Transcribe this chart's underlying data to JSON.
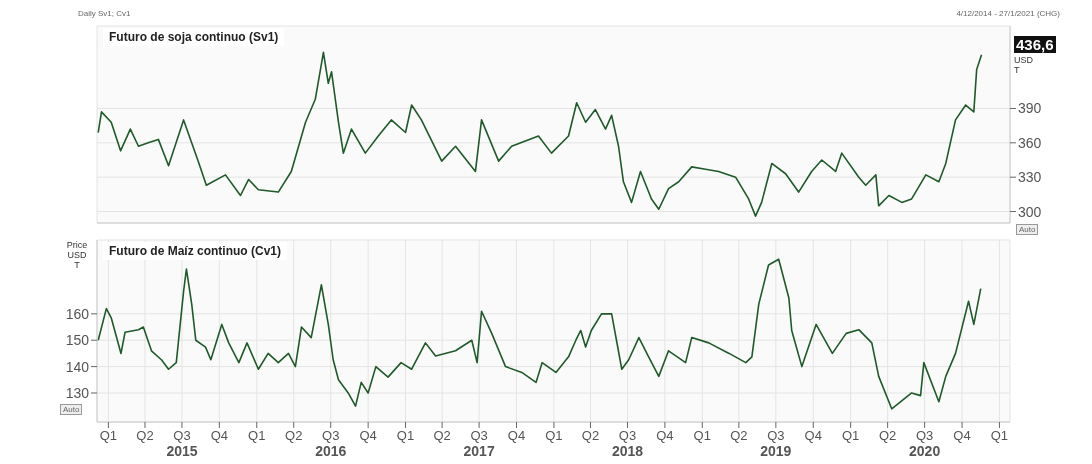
{
  "chart_data": [
    {
      "type": "line",
      "title": "Futuro de soja continuo (Sv1)",
      "ylabel": "USD T",
      "annotations": [
        "Daily Sv1; Cv1",
        "4/12/2014 - 27/1/2021 (CHG)",
        "Auto",
        "436,6"
      ],
      "xlim": [
        "2014-12-04",
        "2021-01-27"
      ],
      "ylim": [
        290,
        462
      ],
      "yticks": [
        300,
        330,
        360,
        390
      ],
      "xticks": [
        {
          "value": "2015-01-01",
          "label": null
        },
        {
          "value": "2015-04-01",
          "label": null
        },
        {
          "value": "2015-07-01",
          "label": null
        },
        {
          "value": "2015-10-01",
          "label": null
        },
        {
          "value": "2016-01-01",
          "label": null
        },
        {
          "value": "2016-04-01",
          "label": null
        },
        {
          "value": "2016-07-01",
          "label": null
        },
        {
          "value": "2016-10-01",
          "label": null
        },
        {
          "value": "2017-01-01",
          "label": null
        },
        {
          "value": "2017-04-01",
          "label": null
        },
        {
          "value": "2017-07-01",
          "label": null
        },
        {
          "value": "2017-10-01",
          "label": null
        },
        {
          "value": "2018-01-01",
          "label": null
        },
        {
          "value": "2018-04-01",
          "label": null
        },
        {
          "value": "2018-07-01",
          "label": null
        },
        {
          "value": "2018-10-01",
          "label": null
        },
        {
          "value": "2019-01-01",
          "label": null
        },
        {
          "value": "2019-04-01",
          "label": null
        },
        {
          "value": "2019-07-01",
          "label": null
        },
        {
          "value": "2019-10-01",
          "label": null
        },
        {
          "value": "2020-01-01",
          "label": null
        },
        {
          "value": "2020-04-01",
          "label": null
        },
        {
          "value": "2020-07-01",
          "label": null
        },
        {
          "value": "2020-10-01",
          "label": null
        },
        {
          "value": "2021-01-01",
          "label": null
        }
      ],
      "tick_labels": "y",
      "grid": true,
      "legend": false,
      "marker": "none",
      "line_style": "solid",
      "x": [
        "2014-12-07",
        "2014-12-15",
        "2015-01-08",
        "2015-01-31",
        "2015-02-24",
        "2015-03-16",
        "2015-04-09",
        "2015-05-04",
        "2015-05-29",
        "2015-07-05",
        "2015-08-10",
        "2015-08-30",
        "2015-10-16",
        "2015-11-22",
        "2015-12-12",
        "2016-01-05",
        "2016-02-23",
        "2016-03-26",
        "2016-04-30",
        "2016-05-24",
        "2016-06-13",
        "2016-06-25",
        "2016-07-03",
        "2016-07-20",
        "2016-08-01",
        "2016-08-21",
        "2016-09-24",
        "2016-10-26",
        "2016-11-27",
        "2017-01-01",
        "2017-01-16",
        "2017-02-09",
        "2017-03-31",
        "2017-05-04",
        "2017-06-22",
        "2017-07-07",
        "2017-08-18",
        "2017-09-19",
        "2017-11-24",
        "2017-12-26",
        "2018-02-06",
        "2018-02-26",
        "2018-03-20",
        "2018-04-13",
        "2018-05-08",
        "2018-05-23",
        "2018-06-09",
        "2018-06-21",
        "2018-07-11",
        "2018-08-02",
        "2018-08-29",
        "2018-09-16",
        "2018-10-10",
        "2018-11-04",
        "2018-12-06",
        "2019-01-09",
        "2019-02-10",
        "2019-03-24",
        "2019-04-25",
        "2019-05-12",
        "2019-05-27",
        "2019-06-21",
        "2019-07-25",
        "2019-08-26",
        "2019-09-27",
        "2019-10-22",
        "2019-11-25",
        "2019-12-10",
        "2020-01-21",
        "2020-02-07",
        "2020-03-03",
        "2020-03-10",
        "2020-04-04",
        "2020-05-06",
        "2020-05-30",
        "2020-07-04",
        "2020-08-05",
        "2020-08-22",
        "2020-09-15",
        "2020-10-10",
        "2020-10-30",
        "2020-11-06",
        "2020-11-18"
      ],
      "series": [
        {
          "color": "#1f5a2a",
          "values": [
            369,
            387,
            378,
            353,
            372,
            357,
            360,
            363,
            340,
            380,
            344,
            323,
            332,
            314,
            328,
            319,
            317,
            335,
            378,
            398,
            439,
            412,
            422,
            378,
            351,
            372,
            351,
            366,
            380,
            369,
            393,
            380,
            344,
            357,
            335,
            380,
            344,
            357,
            366,
            351,
            366,
            395,
            378,
            389,
            372,
            384,
            357,
            326,
            308,
            335,
            311,
            302,
            320,
            326,
            339,
            337,
            335,
            330,
            311,
            296,
            308,
            342,
            333,
            317,
            335,
            345,
            335,
            351,
            330,
            323,
            332,
            305,
            314,
            308,
            311,
            332,
            326,
            342,
            380,
            393,
            387,
            424,
            437
          ]
        }
      ]
    },
    {
      "type": "line",
      "title": "Futuro de Maíz continuo (Cv1)",
      "ylabel": "Price USD T",
      "annotations": [
        "Auto"
      ],
      "xlim": [
        "2014-12-04",
        "2021-01-27"
      ],
      "ylim": [
        119,
        188
      ],
      "yticks": [
        130,
        140,
        150,
        160
      ],
      "xticks": [
        {
          "value": "2015-01-01",
          "label": "Q1"
        },
        {
          "value": "2015-04-01",
          "label": "Q2"
        },
        {
          "value": "2015-07-01",
          "label": "Q3\n2015"
        },
        {
          "value": "2015-10-01",
          "label": "Q4"
        },
        {
          "value": "2016-01-01",
          "label": "Q1"
        },
        {
          "value": "2016-04-01",
          "label": "Q2"
        },
        {
          "value": "2016-07-01",
          "label": "Q3\n2016"
        },
        {
          "value": "2016-10-01",
          "label": "Q4"
        },
        {
          "value": "2017-01-01",
          "label": "Q1"
        },
        {
          "value": "2017-04-01",
          "label": "Q2"
        },
        {
          "value": "2017-07-01",
          "label": "Q3\n2017"
        },
        {
          "value": "2017-10-01",
          "label": "Q4"
        },
        {
          "value": "2018-01-01",
          "label": "Q1"
        },
        {
          "value": "2018-04-01",
          "label": "Q2"
        },
        {
          "value": "2018-07-01",
          "label": "Q3\n2018"
        },
        {
          "value": "2018-10-01",
          "label": "Q4"
        },
        {
          "value": "2019-01-01",
          "label": "Q1"
        },
        {
          "value": "2019-04-01",
          "label": "Q2"
        },
        {
          "value": "2019-07-01",
          "label": "Q3\n2019"
        },
        {
          "value": "2019-10-01",
          "label": "Q4"
        },
        {
          "value": "2020-01-01",
          "label": "Q1"
        },
        {
          "value": "2020-04-01",
          "label": "Q2"
        },
        {
          "value": "2020-07-01",
          "label": "Q3\n2020"
        },
        {
          "value": "2020-10-01",
          "label": "Q4"
        },
        {
          "value": "2021-01-01",
          "label": "Q1"
        }
      ],
      "grid": true,
      "legend": false,
      "marker": "none",
      "line_style": "solid",
      "x": [
        "2014-12-07",
        "2014-12-27",
        "2015-01-08",
        "2015-02-01",
        "2015-02-11",
        "2015-03-16",
        "2015-03-28",
        "2015-04-17",
        "2015-05-12",
        "2015-05-29",
        "2015-06-17",
        "2015-06-22",
        "2015-07-05",
        "2015-07-12",
        "2015-07-25",
        "2015-08-04",
        "2015-08-28",
        "2015-09-10",
        "2015-10-07",
        "2015-10-24",
        "2015-11-18",
        "2015-12-08",
        "2016-01-05",
        "2016-01-29",
        "2016-02-23",
        "2016-03-19",
        "2016-04-05",
        "2016-04-20",
        "2016-05-14",
        "2016-06-08",
        "2016-06-25",
        "2016-07-07",
        "2016-07-20",
        "2016-08-13",
        "2016-08-31",
        "2016-09-14",
        "2016-10-01",
        "2016-10-20",
        "2016-11-19",
        "2016-12-21",
        "2017-01-16",
        "2017-02-19",
        "2017-03-16",
        "2017-05-04",
        "2017-06-13",
        "2017-06-26",
        "2017-07-07",
        "2017-08-01",
        "2017-09-04",
        "2017-10-14",
        "2017-11-18",
        "2017-12-03",
        "2018-01-06",
        "2018-02-06",
        "2018-02-24",
        "2018-03-08",
        "2018-03-20",
        "2018-04-03",
        "2018-04-28",
        "2018-05-23",
        "2018-06-17",
        "2018-07-04",
        "2018-07-29",
        "2018-08-22",
        "2018-09-16",
        "2018-10-10",
        "2018-11-21",
        "2018-12-06",
        "2019-01-17",
        "2019-03-08",
        "2019-04-18",
        "2019-05-03",
        "2019-05-20",
        "2019-06-13",
        "2019-07-08",
        "2019-08-02",
        "2019-08-09",
        "2019-09-03",
        "2019-10-08",
        "2019-11-17",
        "2019-12-21",
        "2020-01-21",
        "2020-02-22",
        "2020-03-10",
        "2020-04-11",
        "2020-05-30",
        "2020-06-21",
        "2020-06-29",
        "2020-08-05",
        "2020-08-22",
        "2020-09-15",
        "2020-10-17",
        "2020-10-30",
        "2020-11-16"
      ],
      "series": [
        {
          "color": "#1f5a2a",
          "values": [
            150,
            162,
            158.5,
            145,
            153,
            154,
            155,
            146,
            142.5,
            139,
            141.5,
            149,
            168.5,
            177,
            163.7,
            150,
            147.4,
            142.6,
            156,
            149,
            141.5,
            149,
            139,
            145,
            141.5,
            145,
            140,
            155,
            151,
            171,
            156,
            142.6,
            135,
            130,
            125,
            134,
            130,
            140,
            136,
            141.5,
            139,
            149,
            144,
            146,
            150,
            141.5,
            161,
            152.6,
            140,
            137.8,
            134,
            141.5,
            137.8,
            143.7,
            150,
            153.7,
            147.4,
            153.7,
            160,
            160,
            139,
            142.6,
            151,
            143.7,
            136.3,
            146,
            141.5,
            151,
            149,
            145,
            141.5,
            143.7,
            163.7,
            178.5,
            180.7,
            166,
            153.7,
            140,
            156,
            145,
            152.6,
            154,
            149,
            136.3,
            124,
            130,
            129,
            141.5,
            126.7,
            136.3,
            145,
            164.8,
            156,
            169.6
          ]
        }
      ]
    }
  ]
}
